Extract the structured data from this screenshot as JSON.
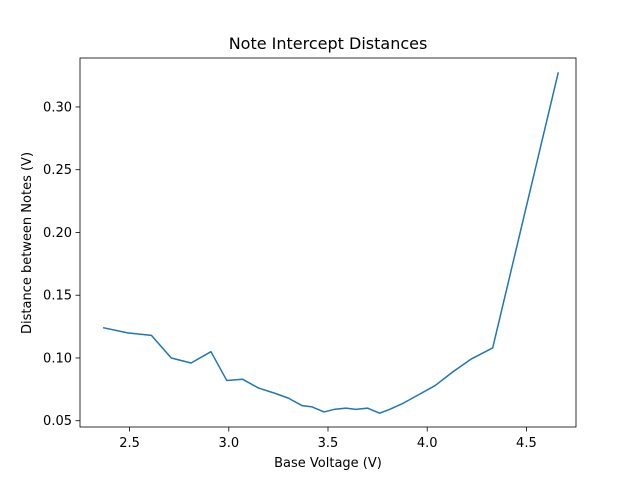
{
  "chart_data": {
    "type": "line",
    "title": "Note Intercept Distances",
    "xlabel": "Base Voltage (V)",
    "ylabel": "Distance between Notes (V)",
    "xlim": [
      2.25,
      4.75
    ],
    "ylim": [
      0.045,
      0.339
    ],
    "xticks": [
      2.5,
      3.0,
      3.5,
      4.0,
      4.5
    ],
    "xtick_labels": [
      "2.5",
      "3.0",
      "3.5",
      "4.0",
      "4.5"
    ],
    "yticks": [
      0.05,
      0.1,
      0.15,
      0.2,
      0.25,
      0.3
    ],
    "ytick_labels": [
      "0.05",
      "0.10",
      "0.15",
      "0.20",
      "0.25",
      "0.30"
    ],
    "grid": false,
    "series": [
      {
        "color": "#1f77b4",
        "x": [
          2.37,
          2.49,
          2.61,
          2.71,
          2.81,
          2.91,
          2.99,
          3.07,
          3.15,
          3.23,
          3.3,
          3.37,
          3.42,
          3.48,
          3.53,
          3.59,
          3.64,
          3.7,
          3.76,
          3.81,
          3.88,
          3.96,
          4.04,
          4.13,
          4.22,
          4.33,
          4.66
        ],
        "y": [
          0.124,
          0.12,
          0.118,
          0.1,
          0.096,
          0.105,
          0.082,
          0.083,
          0.076,
          0.072,
          0.068,
          0.062,
          0.061,
          0.057,
          0.059,
          0.06,
          0.059,
          0.06,
          0.056,
          0.059,
          0.064,
          0.071,
          0.078,
          0.089,
          0.099,
          0.108,
          0.327
        ]
      }
    ]
  }
}
